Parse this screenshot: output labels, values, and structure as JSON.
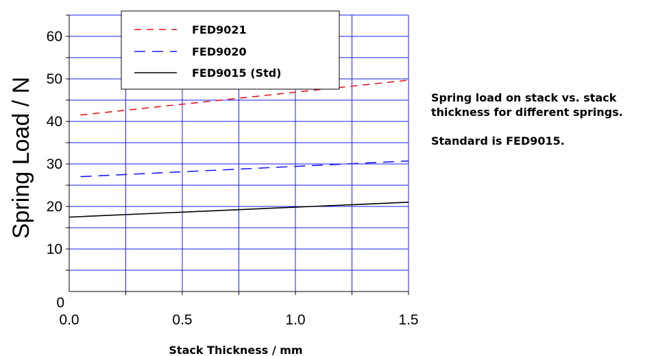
{
  "chart_data": {
    "type": "line",
    "xlabel": "Stack Thickness / mm",
    "ylabel": "Spring Load / N",
    "xlim": [
      0,
      1.5
    ],
    "ylim": [
      0,
      65
    ],
    "x_ticks": [
      "0.0",
      "0.5",
      "1.0",
      "1.5"
    ],
    "x_tick_values": [
      0,
      0.5,
      1.0,
      1.5
    ],
    "y_ticks": [
      "0",
      "10",
      "20",
      "30",
      "40",
      "50",
      "60"
    ],
    "y_tick_values": [
      0,
      10,
      20,
      30,
      40,
      50,
      60
    ],
    "grid": true,
    "legend_position": "top",
    "series": [
      {
        "name": "FED9021",
        "color": "#e8141c",
        "dash": "dash",
        "x": [
          0.05,
          1.5
        ],
        "y": [
          41.5,
          49.7
        ]
      },
      {
        "name": "FED9020",
        "color": "#1a1aff",
        "dash": "longdash",
        "x": [
          0.05,
          1.5
        ],
        "y": [
          27.0,
          30.7
        ]
      },
      {
        "name": "FED9015  (Std)",
        "color": "#000000",
        "dash": "solid",
        "x": [
          0.0,
          1.5
        ],
        "y": [
          17.5,
          21.0
        ]
      }
    ]
  },
  "caption": {
    "line1": "Spring load on stack vs. stack thickness for different springs.",
    "line2": "Standard is FED9015."
  }
}
